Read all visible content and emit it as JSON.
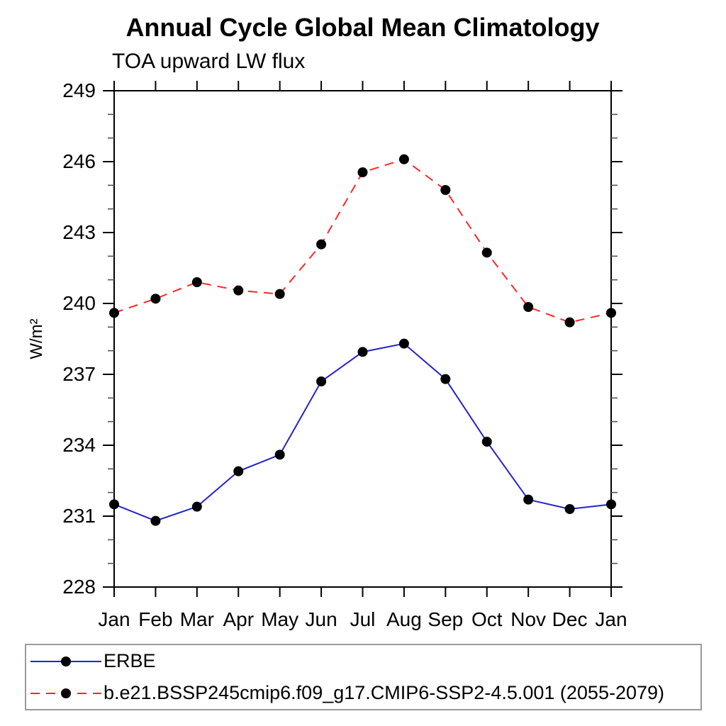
{
  "page": {
    "title": "Annual Cycle Global Mean Climatology",
    "subtitle": "TOA upward LW flux"
  },
  "chart_data": {
    "type": "line",
    "title": "Annual Cycle Global Mean Climatology",
    "subtitle": "TOA upward LW flux",
    "xlabel": "",
    "ylabel": "W/m²",
    "categories": [
      "Jan",
      "Feb",
      "Mar",
      "Apr",
      "May",
      "Jun",
      "Jul",
      "Aug",
      "Sep",
      "Oct",
      "Nov",
      "Dec",
      "Jan"
    ],
    "ylim": [
      228,
      249
    ],
    "ytick_major": [
      228,
      231,
      234,
      237,
      240,
      243,
      246,
      249
    ],
    "ytick_minor_step": 1,
    "grid": false,
    "legend_position": "bottom-left-box",
    "axis_color": "#000000",
    "series": [
      {
        "name": "ERBE",
        "color": "#2222cc",
        "line_style": "solid",
        "marker": "circle",
        "marker_color": "#000000",
        "values": [
          231.5,
          230.8,
          231.4,
          232.9,
          233.6,
          236.7,
          237.95,
          238.3,
          236.8,
          234.15,
          231.7,
          231.3,
          231.5
        ]
      },
      {
        "name": "b.e21.BSSP245cmip6.f09_g17.CMIP6-SSP2-4.5.001 (2055-2079)",
        "color": "#ff2626",
        "line_style": "dashed",
        "marker": "circle",
        "marker_color": "#000000",
        "values": [
          239.6,
          240.2,
          240.9,
          240.55,
          240.4,
          242.5,
          245.55,
          246.1,
          244.8,
          242.15,
          239.85,
          239.2,
          239.6
        ]
      }
    ]
  }
}
